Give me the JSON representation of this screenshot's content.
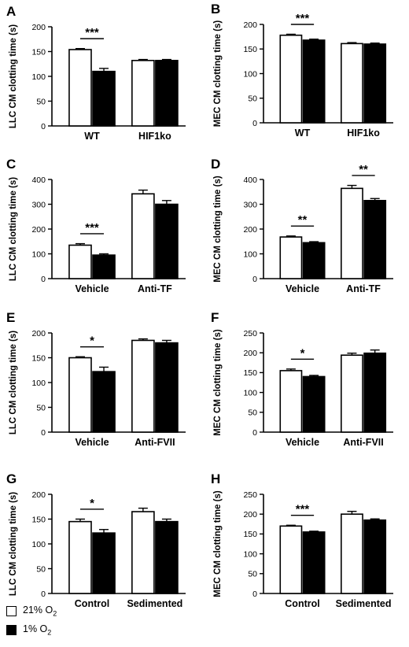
{
  "legend": {
    "items": [
      {
        "label_main": "21% O",
        "label_sub": "2",
        "fill": "#ffffff"
      },
      {
        "label_main": "1% O",
        "label_sub": "2",
        "fill": "#000000"
      }
    ]
  },
  "colors": {
    "normoxia": "#ffffff",
    "hypoxia": "#000000",
    "stroke": "#000000"
  },
  "chart_data": [
    {
      "panel": "A",
      "type": "bar",
      "ylabel": "LLC CM clotting time (s)",
      "ylim": [
        0,
        200
      ],
      "yticks": [
        0,
        50,
        100,
        150,
        200
      ],
      "categories": [
        "WT",
        "HIF1ko"
      ],
      "series": [
        {
          "name": "21% O2",
          "values": [
            154,
            132
          ],
          "errors": [
            2,
            2
          ]
        },
        {
          "name": "1% O2",
          "values": [
            110,
            132
          ],
          "errors": [
            6,
            2
          ]
        }
      ],
      "significance": [
        {
          "category": 0,
          "label": "***"
        }
      ]
    },
    {
      "panel": "B",
      "type": "bar",
      "ylabel": "MEC CM clotting time (s)",
      "ylim": [
        0,
        200
      ],
      "yticks": [
        0,
        50,
        100,
        150,
        200
      ],
      "categories": [
        "WT",
        "HIF1ko"
      ],
      "series": [
        {
          "name": "21% O2",
          "values": [
            178,
            161
          ],
          "errors": [
            2,
            2
          ]
        },
        {
          "name": "1% O2",
          "values": [
            168,
            160
          ],
          "errors": [
            2,
            2
          ]
        }
      ],
      "significance": [
        {
          "category": 0,
          "label": "***"
        }
      ]
    },
    {
      "panel": "C",
      "type": "bar",
      "ylabel": "LLC CM clotting time (s)",
      "ylim": [
        0,
        400
      ],
      "yticks": [
        0,
        100,
        200,
        300,
        400
      ],
      "categories": [
        "Vehicle",
        "Anti-TF"
      ],
      "series": [
        {
          "name": "21% O2",
          "values": [
            135,
            342
          ],
          "errors": [
            6,
            15
          ]
        },
        {
          "name": "1% O2",
          "values": [
            95,
            300
          ],
          "errors": [
            5,
            15
          ]
        }
      ],
      "significance": [
        {
          "category": 0,
          "label": "***"
        }
      ]
    },
    {
      "panel": "D",
      "type": "bar",
      "ylabel": "MEC CM clotting time (s)",
      "ylim": [
        0,
        400
      ],
      "yticks": [
        0,
        100,
        200,
        300,
        400
      ],
      "categories": [
        "Vehicle",
        "Anti-TF"
      ],
      "series": [
        {
          "name": "21% O2",
          "values": [
            168,
            364
          ],
          "errors": [
            4,
            12
          ]
        },
        {
          "name": "1% O2",
          "values": [
            145,
            315
          ],
          "errors": [
            4,
            8
          ]
        }
      ],
      "significance": [
        {
          "category": 0,
          "label": "**"
        },
        {
          "category": 1,
          "label": "**"
        }
      ]
    },
    {
      "panel": "E",
      "type": "bar",
      "ylabel": "LLC CM clotting time (s)",
      "ylim": [
        0,
        200
      ],
      "yticks": [
        0,
        50,
        100,
        150,
        200
      ],
      "categories": [
        "Vehicle",
        "Anti-FVII"
      ],
      "series": [
        {
          "name": "21% O2",
          "values": [
            150,
            185
          ],
          "errors": [
            2,
            3
          ]
        },
        {
          "name": "1% O2",
          "values": [
            122,
            180
          ],
          "errors": [
            9,
            5
          ]
        }
      ],
      "significance": [
        {
          "category": 0,
          "label": "*"
        }
      ]
    },
    {
      "panel": "F",
      "type": "bar",
      "ylabel": "MEC CM clotting time (s)",
      "ylim": [
        0,
        250
      ],
      "yticks": [
        0,
        50,
        100,
        150,
        200,
        250
      ],
      "categories": [
        "Vehicle",
        "Anti-FVII"
      ],
      "series": [
        {
          "name": "21% O2",
          "values": [
            155,
            194
          ],
          "errors": [
            4,
            5
          ]
        },
        {
          "name": "1% O2",
          "values": [
            140,
            199
          ],
          "errors": [
            3,
            8
          ]
        }
      ],
      "significance": [
        {
          "category": 0,
          "label": "*"
        }
      ]
    },
    {
      "panel": "G",
      "type": "bar",
      "ylabel": "LLC CM clotting time (s)",
      "ylim": [
        0,
        200
      ],
      "yticks": [
        0,
        50,
        100,
        150,
        200
      ],
      "categories": [
        "Control",
        "Sedimented"
      ],
      "series": [
        {
          "name": "21% O2",
          "values": [
            145,
            165
          ],
          "errors": [
            5,
            7
          ]
        },
        {
          "name": "1% O2",
          "values": [
            122,
            145
          ],
          "errors": [
            7,
            5
          ]
        }
      ],
      "significance": [
        {
          "category": 0,
          "label": "*"
        }
      ]
    },
    {
      "panel": "H",
      "type": "bar",
      "ylabel": "MEC CM clotting time (s)",
      "ylim": [
        0,
        250
      ],
      "yticks": [
        0,
        50,
        100,
        150,
        200,
        250
      ],
      "categories": [
        "Control",
        "Sedimented"
      ],
      "series": [
        {
          "name": "21% O2",
          "values": [
            170,
            200
          ],
          "errors": [
            2,
            7
          ]
        },
        {
          "name": "1% O2",
          "values": [
            155,
            185
          ],
          "errors": [
            2,
            3
          ]
        }
      ],
      "significance": [
        {
          "category": 0,
          "label": "***"
        }
      ]
    }
  ]
}
